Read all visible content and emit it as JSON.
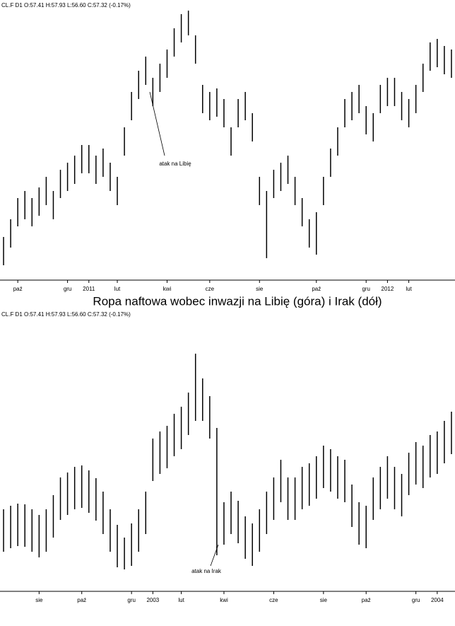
{
  "title": "Ropa naftowa wobec inwazji na Libię (góra) i Irak (dół)",
  "chart_data": [
    {
      "type": "ohlc",
      "header": "CL.F  D1  O:57.41  H:57.93  L:56.60  C:57.32  (-0.17%)",
      "annotation": "atak na Libię",
      "color": "#000000",
      "ylim": [
        70,
        108
      ],
      "categories": [
        null,
        null,
        "paź",
        null,
        null,
        null,
        null,
        null,
        null,
        "gru",
        null,
        null,
        "2011",
        null,
        null,
        null,
        "lut",
        null,
        null,
        null,
        null,
        null,
        null,
        "kwi",
        null,
        null,
        null,
        null,
        null,
        "cze",
        null,
        null,
        null,
        null,
        null,
        null,
        "sie",
        null,
        null,
        null,
        null,
        null,
        null,
        null,
        "paź",
        null,
        null,
        null,
        null,
        null,
        null,
        "gru",
        null,
        null,
        "2012",
        null,
        null,
        "lut",
        null,
        null,
        null,
        null,
        null,
        null
      ],
      "high": [
        76,
        78.5,
        81.5,
        82.5,
        81.5,
        83,
        84.5,
        82.5,
        85.5,
        86.5,
        87.5,
        89,
        89,
        87.5,
        88.5,
        86.5,
        84.5,
        91.5,
        96.5,
        99.5,
        101.5,
        98.5,
        100.5,
        102.5,
        105.5,
        107.5,
        108,
        104.5,
        97.5,
        96.5,
        97,
        95.5,
        91.5,
        95.5,
        96.5,
        93.5,
        84.5,
        82.5,
        85.5,
        86.5,
        87.5,
        84.5,
        81.5,
        78.5,
        79.5,
        84.5,
        88.5,
        91.5,
        95.5,
        96.5,
        97.5,
        94.5,
        93.5,
        97.5,
        98.5,
        98.5,
        96.5,
        95.5,
        97.5,
        100.5,
        103.5,
        104,
        103,
        102.5
      ],
      "low": [
        72,
        74.5,
        77.5,
        78.5,
        77.5,
        79,
        80.5,
        78.5,
        81.5,
        82.5,
        83.5,
        85,
        85,
        83.5,
        84.5,
        82.5,
        80.5,
        87.5,
        92.5,
        95.5,
        97.5,
        94.5,
        96.5,
        98.5,
        101.5,
        103.5,
        104.5,
        100.5,
        93.5,
        92.5,
        93,
        91.5,
        87.5,
        91.5,
        92.5,
        89.5,
        80.5,
        73,
        81.5,
        82.5,
        83.5,
        80.5,
        77.5,
        74.5,
        73.5,
        80.5,
        84.5,
        87.5,
        91.5,
        92.5,
        93.5,
        90.5,
        89.5,
        93.5,
        94.5,
        94.5,
        92.5,
        91.5,
        93.5,
        96.5,
        99.5,
        100,
        99,
        98.5
      ]
    },
    {
      "type": "ohlc",
      "header": "CL.F  D1  O:57.41  H:57.93  L:56.60  C:57.32  (-0.17%)",
      "annotation": "atak na Irak",
      "color": "#000000",
      "ylim": [
        20,
        39
      ],
      "categories": [
        null,
        null,
        null,
        null,
        null,
        "sie",
        null,
        null,
        null,
        null,
        null,
        "paź",
        null,
        null,
        null,
        null,
        null,
        null,
        "gru",
        null,
        null,
        "2003",
        null,
        null,
        null,
        "lut",
        null,
        null,
        null,
        null,
        null,
        "kwi",
        null,
        null,
        null,
        null,
        null,
        null,
        "cze",
        null,
        null,
        null,
        null,
        null,
        null,
        "sie",
        null,
        null,
        null,
        null,
        null,
        "paź",
        null,
        null,
        null,
        null,
        null,
        null,
        "gru",
        null,
        null,
        "2004",
        null,
        null
      ],
      "high": [
        25.75,
        26,
        26.15,
        26.1,
        25.75,
        25.35,
        25.75,
        26.75,
        28,
        28.35,
        28.75,
        28.85,
        28.5,
        27.95,
        27,
        25.75,
        24.65,
        23.75,
        24.75,
        25.75,
        27,
        30.75,
        31.25,
        31.65,
        32.5,
        33,
        34,
        36.75,
        35,
        33.75,
        31.5,
        26.25,
        27,
        26.35,
        25.25,
        24.75,
        25.75,
        27,
        28,
        29.25,
        28,
        28,
        28.75,
        29,
        29.5,
        30.25,
        30,
        29.5,
        29.25,
        27.5,
        26.25,
        26,
        28,
        28.75,
        29.5,
        28.75,
        28.25,
        29.75,
        30.5,
        30.25,
        31,
        31.25,
        32,
        32.65
      ],
      "low": [
        22.75,
        23,
        23.15,
        23.1,
        22.75,
        22.35,
        22.75,
        23.75,
        25,
        25.35,
        25.75,
        25.85,
        25.5,
        24.95,
        24,
        22.75,
        21.65,
        21.5,
        21.75,
        22.75,
        24,
        27.75,
        28.25,
        28.65,
        29.5,
        30,
        31,
        32,
        32,
        30.75,
        22.5,
        23.25,
        24,
        23.35,
        22.25,
        21.75,
        22.75,
        24,
        25,
        26.25,
        25,
        25,
        25.75,
        26,
        26.5,
        27.25,
        27,
        26.5,
        26.25,
        24.5,
        23.25,
        23,
        25,
        25.75,
        26.5,
        25.75,
        25.25,
        26.75,
        27.5,
        27.25,
        28,
        28.25,
        29,
        29.65
      ]
    }
  ]
}
